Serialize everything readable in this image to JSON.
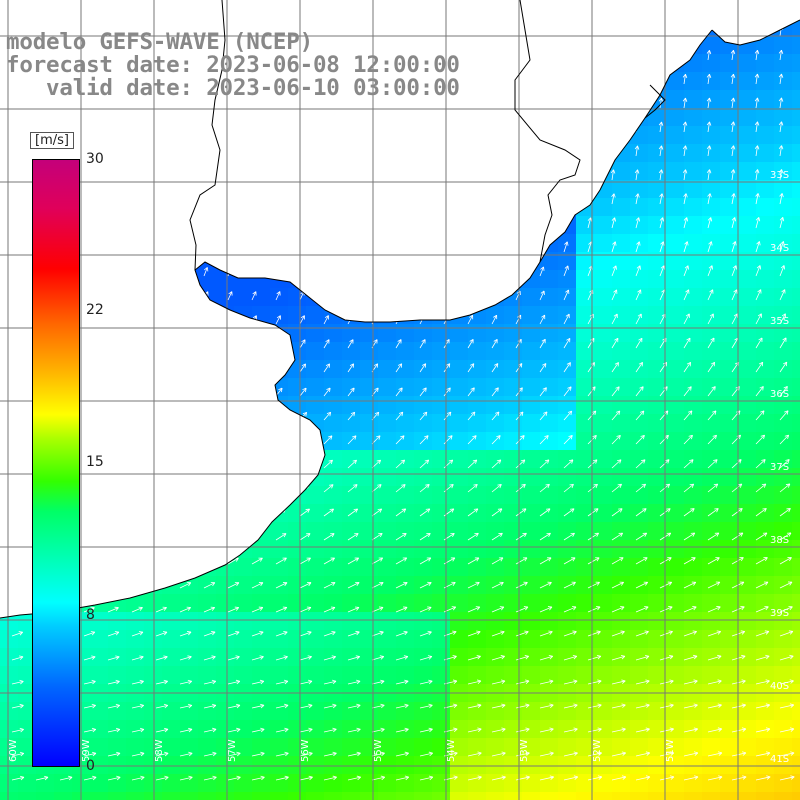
{
  "title": {
    "line1": "modelo GEFS-WAVE (NCEP)",
    "line2": "forecast date: 2023-06-08 12:00:00",
    "line3": "   valid date: 2023-06-10 03:00:00"
  },
  "colorbar": {
    "unit": "[m/s]",
    "ticks": [
      "30",
      "22",
      "15",
      "8",
      "0"
    ],
    "min": 0,
    "max": 30
  },
  "lat_labels": [
    "33S",
    "34S",
    "35S",
    "36S",
    "37S",
    "38S",
    "39S",
    "40S",
    "41S"
  ],
  "lon_labels": [
    "60W",
    "59W",
    "58W",
    "57W",
    "56W",
    "55W",
    "54W",
    "53W",
    "52W",
    "51W"
  ],
  "colors": {
    "land": "#ffffff",
    "grid": "#777777",
    "coast": "#000000",
    "arrow": "#ffffff",
    "title_text": "#888888"
  },
  "field": {
    "variable": "wind speed",
    "arrow_direction": "toward north-east, turning east in the south"
  }
}
